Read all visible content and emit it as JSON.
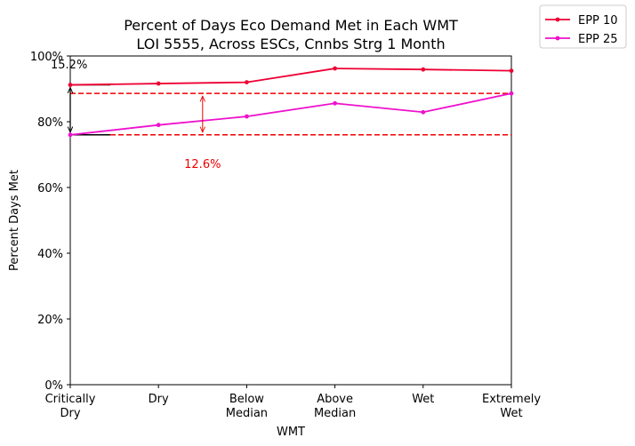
{
  "chart_data": {
    "type": "line",
    "title": "Percent of Days Eco Demand Met in Each WMT",
    "subtitle": "LOI 5555, Across ESCs, Cnnbs Strg 1 Month",
    "xlabel": "WMT",
    "ylabel": "Percent Days Met",
    "categories": [
      "Critically\nDry",
      "Dry",
      "Below\nMedian",
      "Above\nMedian",
      "Wet",
      "Extremely\nWet"
    ],
    "ylim": [
      0,
      100
    ],
    "yticks": [
      "0%",
      "20%",
      "40%",
      "60%",
      "80%",
      "100%"
    ],
    "series": [
      {
        "name": "EPP 10",
        "color": "#ee0033",
        "values": [
          91.2,
          91.6,
          92.0,
          96.2,
          95.9,
          95.5
        ]
      },
      {
        "name": "EPP 25",
        "color": "#ee11cc",
        "values": [
          76.0,
          79.0,
          81.6,
          85.6,
          82.9,
          88.6
        ]
      }
    ],
    "legend": "outside-top-right",
    "grid": false,
    "reference_lines": [
      {
        "y": 88.6,
        "color": "#ee0000",
        "style": "dashed"
      },
      {
        "y": 76.0,
        "color": "#ee0000",
        "style": "dashed"
      }
    ],
    "annotations": [
      {
        "text": "15.2%",
        "color": "#000000",
        "from": 91.2,
        "to": 76.0,
        "category_index": 0
      },
      {
        "text": "12.6%",
        "color": "#ee0000",
        "from": 88.6,
        "to": 76.0,
        "category_index": 1.5
      }
    ]
  }
}
